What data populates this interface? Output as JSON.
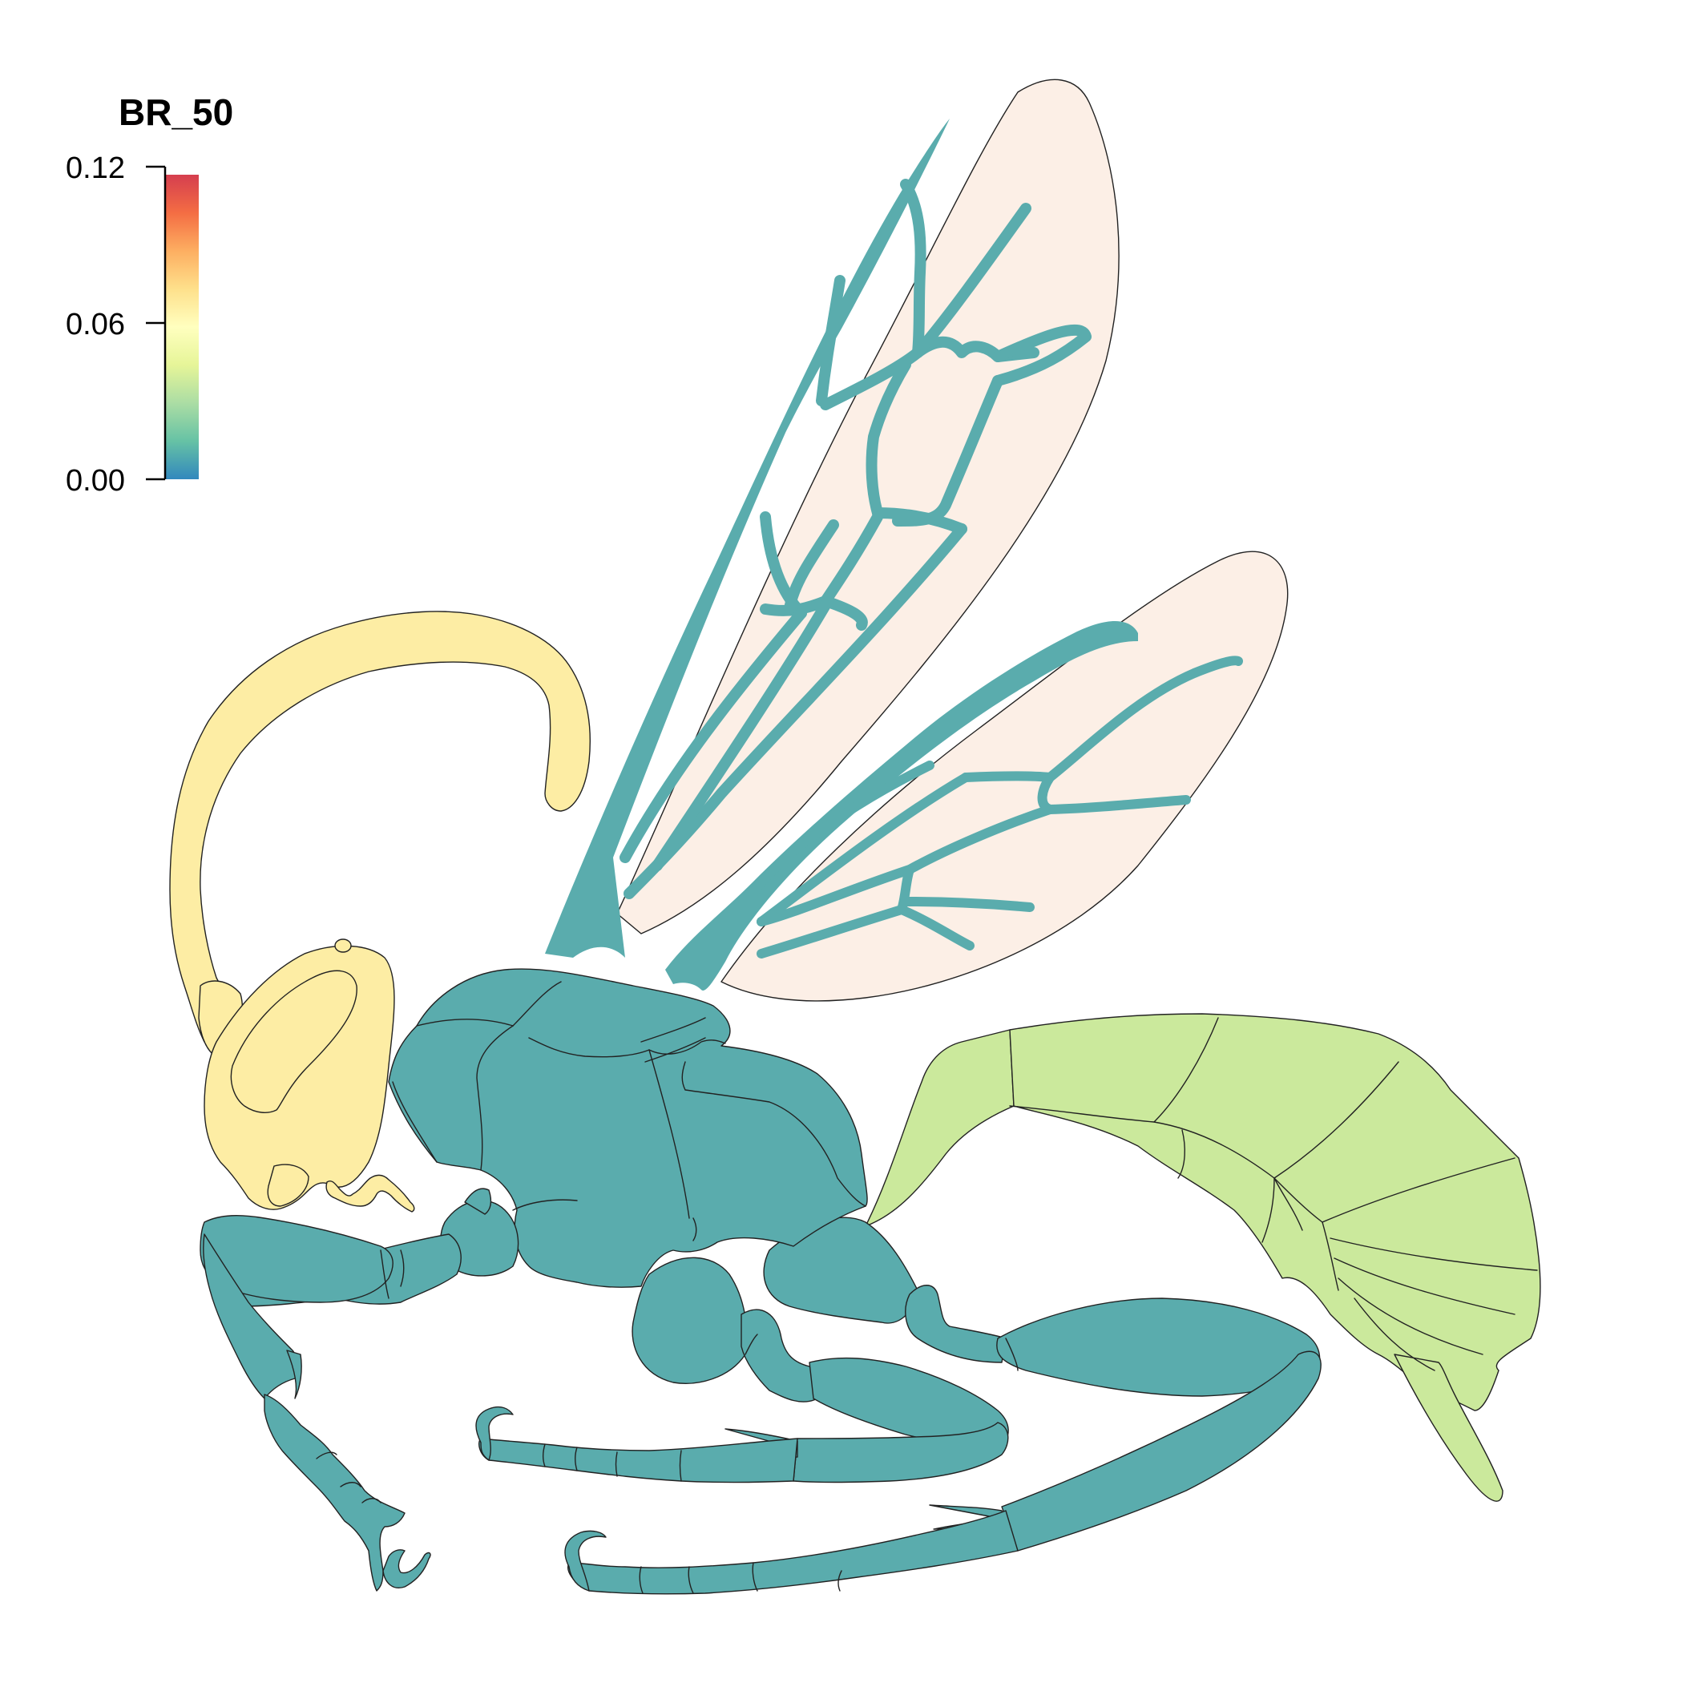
{
  "legend": {
    "title": "BR_50",
    "ticks": [
      "0.12",
      "0.06",
      "0.00"
    ],
    "gradient": [
      "#d53e4f",
      "#f46d43",
      "#fdae61",
      "#fee08b",
      "#ffffbf",
      "#e6f598",
      "#abdda4",
      "#66c2a5",
      "#3288bd"
    ]
  },
  "regions": [
    {
      "name": "head",
      "value": 0.068,
      "color": "#fdeda4"
    },
    {
      "name": "antenna",
      "value": 0.068,
      "color": "#fdeda4"
    },
    {
      "name": "mesosoma",
      "value": 0.015,
      "color": "#5aacad"
    },
    {
      "name": "legs",
      "value": 0.015,
      "color": "#5aacad"
    },
    {
      "name": "wing-veins",
      "value": 0.015,
      "color": "#5aacad"
    },
    {
      "name": "wing-membrane",
      "value": 0.085,
      "color": "#fcefe6"
    },
    {
      "name": "metasoma",
      "value": 0.048,
      "color": "#cbe99c"
    }
  ]
}
